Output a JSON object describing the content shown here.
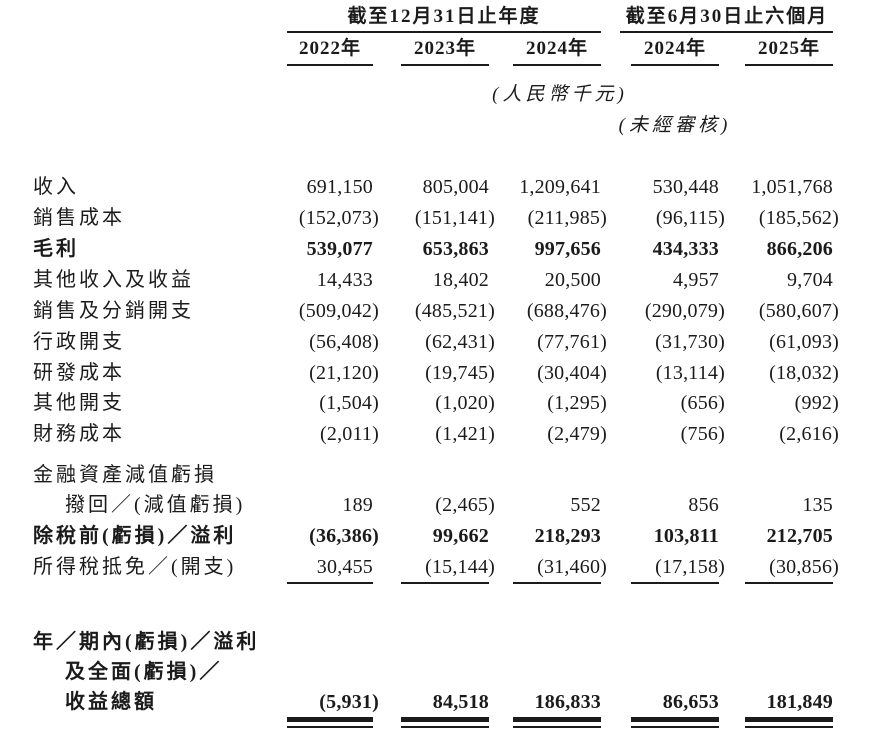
{
  "document": {
    "header": {
      "period_groups": [
        {
          "title": "截至12月31日止年度",
          "columns": [
            "2022年",
            "2023年",
            "2024年"
          ]
        },
        {
          "title": "截至6月30日止六個月",
          "columns": [
            "2024年",
            "2025年"
          ]
        }
      ],
      "currency_note": "(人民幣千元)",
      "audit_note": "(未經審核)"
    },
    "rows": [
      {
        "label": "收入",
        "bold": false,
        "indent": false,
        "rule": null,
        "values": [
          "691,150",
          "805,004",
          "1,209,641",
          "530,448",
          "1,051,768"
        ]
      },
      {
        "label": "銷售成本",
        "bold": false,
        "indent": false,
        "rule": null,
        "values": [
          "(152,073)",
          "(151,141)",
          "(211,985)",
          "(96,115)",
          "(185,562)"
        ]
      },
      {
        "label": "毛利",
        "bold": true,
        "indent": false,
        "rule": null,
        "values": [
          "539,077",
          "653,863",
          "997,656",
          "434,333",
          "866,206"
        ]
      },
      {
        "label": "其他收入及收益",
        "bold": false,
        "indent": false,
        "rule": null,
        "values": [
          "14,433",
          "18,402",
          "20,500",
          "4,957",
          "9,704"
        ]
      },
      {
        "label": "銷售及分銷開支",
        "bold": false,
        "indent": false,
        "rule": null,
        "values": [
          "(509,042)",
          "(485,521)",
          "(688,476)",
          "(290,079)",
          "(580,607)"
        ]
      },
      {
        "label": "行政開支",
        "bold": false,
        "indent": false,
        "rule": null,
        "values": [
          "(56,408)",
          "(62,431)",
          "(77,761)",
          "(31,730)",
          "(61,093)"
        ]
      },
      {
        "label": "研發成本",
        "bold": false,
        "indent": false,
        "rule": null,
        "values": [
          "(21,120)",
          "(19,745)",
          "(30,404)",
          "(13,114)",
          "(18,032)"
        ]
      },
      {
        "label": "其他開支",
        "bold": false,
        "indent": false,
        "rule": null,
        "values": [
          "(1,504)",
          "(1,020)",
          "(1,295)",
          "(656)",
          "(992)"
        ]
      },
      {
        "label": "財務成本",
        "bold": false,
        "indent": false,
        "rule": null,
        "values": [
          "(2,011)",
          "(1,421)",
          "(2,479)",
          "(756)",
          "(2,616)"
        ]
      },
      {
        "label": "金融資產減值虧損",
        "bold": false,
        "indent": false,
        "rule": null,
        "values": null
      },
      {
        "label": "撥回／(減值虧損)",
        "bold": false,
        "indent": true,
        "rule": null,
        "values": [
          "189",
          "(2,465)",
          "552",
          "856",
          "135"
        ]
      },
      {
        "label": "除稅前(虧損)／溢利",
        "bold": true,
        "indent": false,
        "rule": null,
        "values": [
          "(36,386)",
          "99,662",
          "218,293",
          "103,811",
          "212,705"
        ]
      },
      {
        "label": "所得稅抵免／(開支)",
        "bold": false,
        "indent": false,
        "rule": "single",
        "values": [
          "30,455",
          "(15,144)",
          "(31,460)",
          "(17,158)",
          "(30,856)"
        ]
      },
      {
        "label": "年／期內(虧損)／溢利",
        "bold": true,
        "indent": false,
        "rule": null,
        "values": null
      },
      {
        "label": "及全面(虧損)／",
        "bold": true,
        "indent": true,
        "rule": null,
        "values": null
      },
      {
        "label": "收益總額",
        "bold": true,
        "indent": true,
        "rule": "double",
        "values": [
          "(5,931)",
          "84,518",
          "186,833",
          "86,653",
          "181,849"
        ]
      }
    ]
  }
}
